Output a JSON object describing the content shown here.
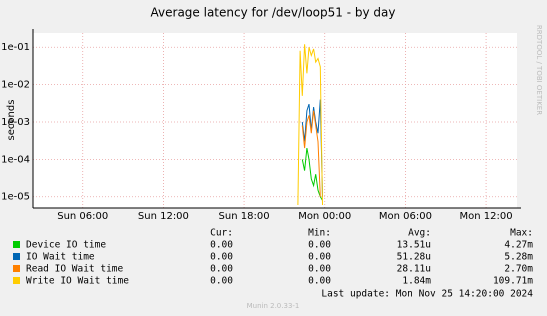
{
  "chart_data": {
    "type": "line",
    "title": "Average latency for /dev/loop51 - by day",
    "y_label": "seconds",
    "side_text": "RRDTOOL / TOBI OETIKER",
    "log_y": true,
    "grid": true,
    "x": [
      22.0,
      22.17,
      22.33,
      22.5,
      22.67,
      22.83,
      23.0,
      23.17,
      23.33,
      23.5,
      23.67,
      23.83,
      24.0
    ],
    "xlim": [
      2.3,
      38.3
    ],
    "xticks": [
      {
        "value": 6,
        "label": "Sun 06:00"
      },
      {
        "value": 12,
        "label": "Sun 12:00"
      },
      {
        "value": 18,
        "label": "Sun 18:00"
      },
      {
        "value": 24,
        "label": "Mon 00:00"
      },
      {
        "value": 30,
        "label": "Mon 06:00"
      },
      {
        "value": 36,
        "label": "Mon 12:00"
      }
    ],
    "ylim": [
      5e-06,
      0.24
    ],
    "yticks": [
      {
        "value": 1e-05,
        "label": "1e-05"
      },
      {
        "value": 0.0001,
        "label": "1e-04"
      },
      {
        "value": 0.001,
        "label": "1e-03"
      },
      {
        "value": 0.01,
        "label": "1e-02"
      },
      {
        "value": 0.1,
        "label": "1e-01"
      }
    ],
    "legend_headers": [
      "Cur:",
      "Min:",
      "Avg:",
      "Max:"
    ],
    "series": [
      {
        "name": "Device IO time",
        "color": "#00cc00",
        "cur": "0.00",
        "min": "0.00",
        "avg": "13.51u",
        "max": "4.27m",
        "values": [
          null,
          null,
          0.0001,
          5e-05,
          0.0002,
          0.0001,
          3e-05,
          2e-05,
          4e-05,
          1.5e-05,
          1e-05,
          8e-06,
          null
        ]
      },
      {
        "name": "IO Wait time",
        "color": "#0066b3",
        "cur": "0.00",
        "min": "0.00",
        "avg": "51.28u",
        "max": "5.28m",
        "values": [
          null,
          null,
          0.001,
          0.0003,
          0.002,
          0.003,
          0.0006,
          0.0025,
          0.001,
          0.0005,
          0.004,
          1e-05,
          null
        ]
      },
      {
        "name": "Read IO Wait time",
        "color": "#ff8000",
        "cur": "0.00",
        "min": "0.00",
        "avg": "28.11u",
        "max": "2.70m",
        "values": [
          null,
          null,
          0.0008,
          0.0002,
          0.001,
          0.0015,
          0.0005,
          0.002,
          0.0008,
          0.0003,
          1e-05,
          null,
          null
        ]
      },
      {
        "name": "Write IO Wait time",
        "color": "#ffcc00",
        "cur": "0.00",
        "min": "0.00",
        "avg": "1.84m",
        "max": "109.71m",
        "values": [
          6e-06,
          0.08,
          0.005,
          0.12,
          0.02,
          0.1,
          0.06,
          0.09,
          0.04,
          0.05,
          0.03,
          6e-06,
          null
        ]
      }
    ],
    "last_update": "Last update:  Mon Nov 25 14:20:00 2024",
    "footer": "Munin 2.0.33-1"
  }
}
